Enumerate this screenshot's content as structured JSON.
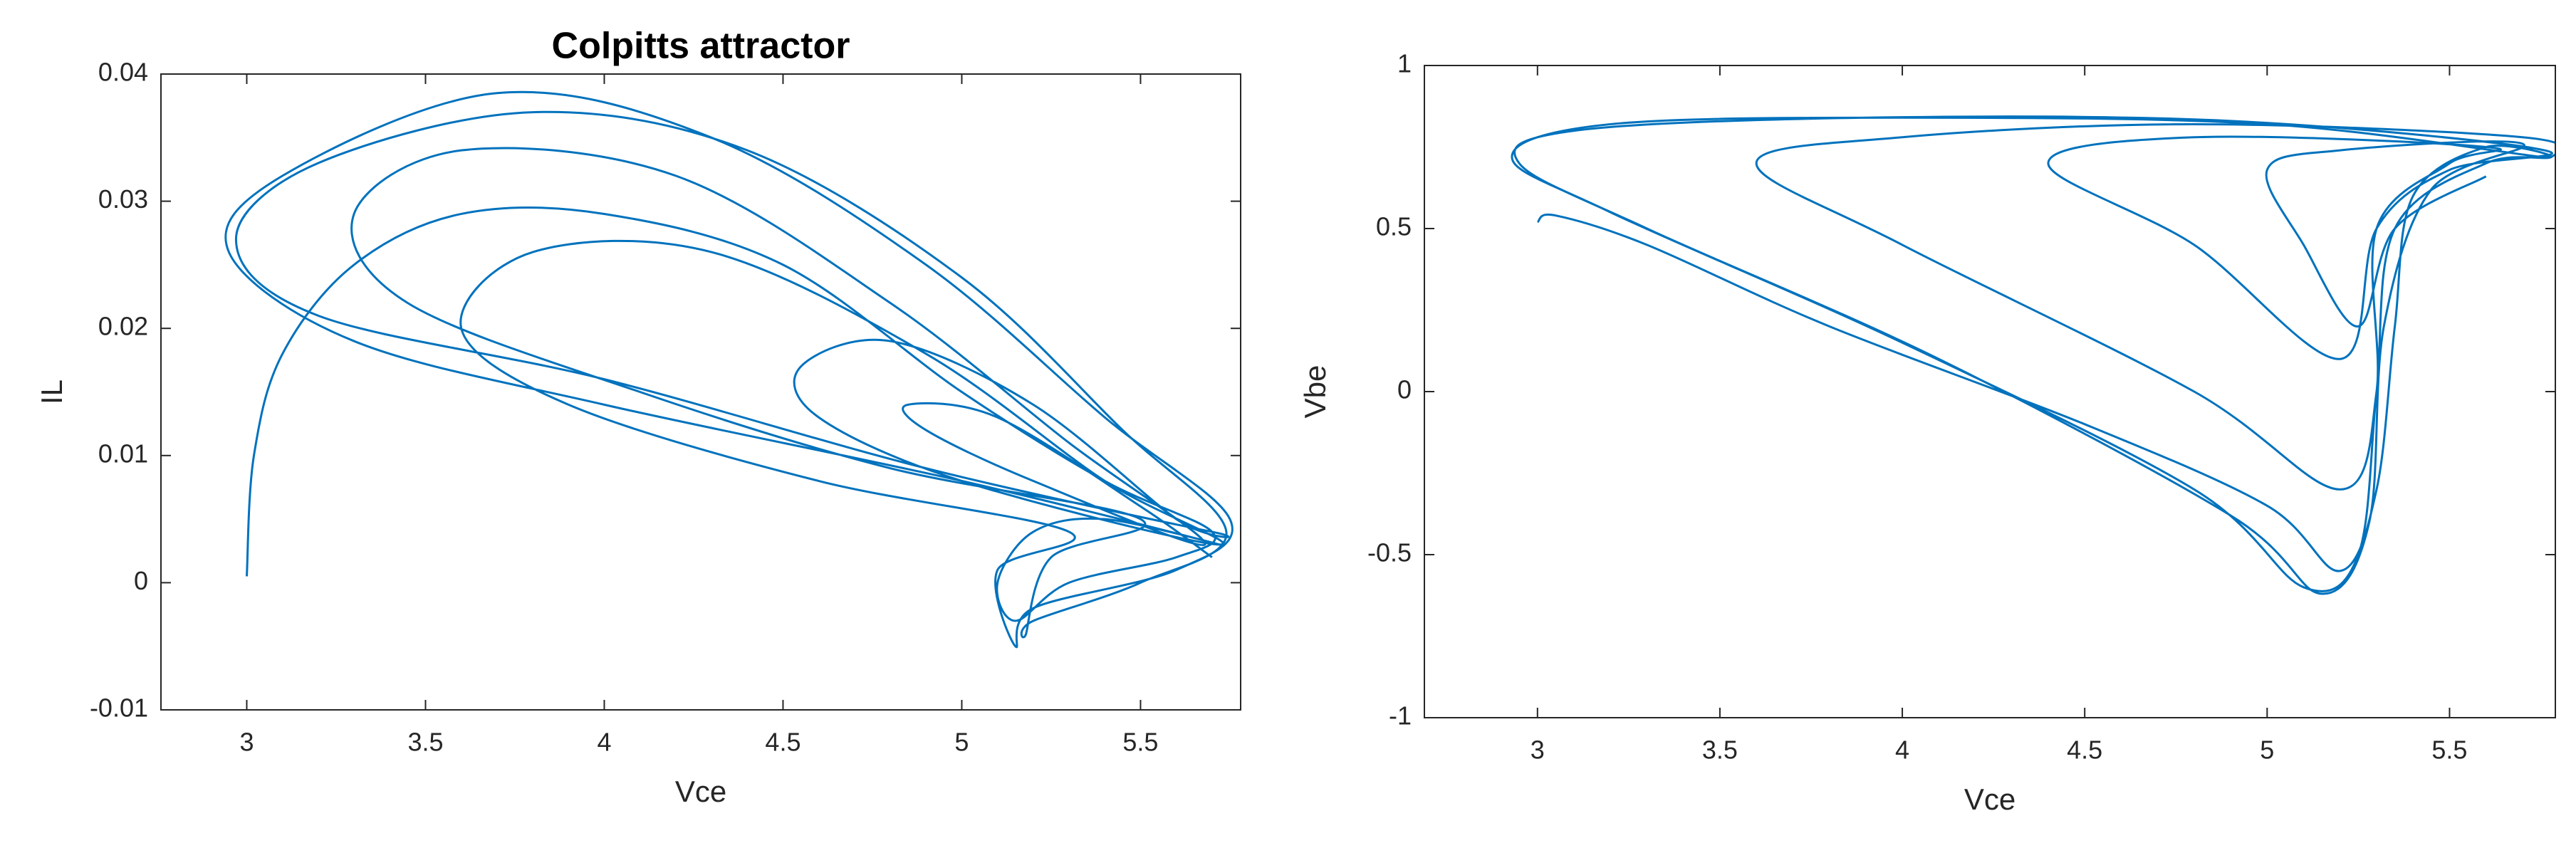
{
  "chart_data": [
    {
      "type": "line",
      "title": "Colpitts attractor",
      "x_label": "Vce",
      "y_label": "IL",
      "xlim": [
        2.76,
        5.78
      ],
      "ylim": [
        -0.01,
        0.04
      ],
      "xticks": [
        3,
        3.5,
        4,
        4.5,
        5,
        5.5
      ],
      "yticks": [
        -0.01,
        0,
        0.01,
        0.02,
        0.03,
        0.04
      ],
      "x": [
        3.0,
        3.02,
        3.1,
        3.3,
        3.6,
        4.0,
        4.5,
        5.0,
        5.4,
        5.7,
        5.6,
        5.3,
        5.15,
        5.1,
        5.2,
        5.4,
        5.72,
        5.0,
        4.0,
        3.3,
        2.95,
        3.1,
        3.7,
        4.3,
        4.9,
        5.4,
        5.75,
        5.6,
        5.2,
        5.15,
        5.1,
        5.3,
        4.6,
        3.9,
        3.6,
        3.8,
        4.3,
        4.9,
        5.4,
        5.72,
        5.0,
        4.6,
        4.55,
        4.8,
        5.2,
        5.6,
        5.7,
        4.9,
        4.0,
        3.2,
        2.97,
        3.2,
        3.8,
        4.4,
        5.0,
        5.45,
        5.74,
        5.5,
        5.2,
        5.18,
        5.25,
        5.5,
        4.8,
        4.1,
        3.45,
        3.3,
        3.6,
        4.2,
        4.8,
        5.3,
        5.68,
        5.2,
        4.9,
        4.85,
        5.1,
        5.5,
        5.7
      ],
      "series": [
        {
          "color": "#0072bd",
          "values": [
            0.0005,
            0.01,
            0.018,
            0.025,
            0.029,
            0.029,
            0.025,
            0.015,
            0.008,
            0.004,
            0.002,
            0.0,
            -0.003,
            0.0,
            0.004,
            0.005,
            0.003,
            0.008,
            0.014,
            0.019,
            0.026,
            0.032,
            0.0385,
            0.035,
            0.025,
            0.013,
            0.005,
            0.001,
            -0.002,
            -0.005,
            0.001,
            0.004,
            0.008,
            0.014,
            0.02,
            0.026,
            0.026,
            0.018,
            0.008,
            0.003,
            0.008,
            0.013,
            0.017,
            0.019,
            0.014,
            0.005,
            0.004,
            0.009,
            0.016,
            0.021,
            0.027,
            0.033,
            0.037,
            0.034,
            0.024,
            0.012,
            0.004,
            0.0,
            -0.003,
            -0.004,
            0.002,
            0.005,
            0.009,
            0.015,
            0.022,
            0.029,
            0.034,
            0.032,
            0.022,
            0.011,
            0.003,
            0.008,
            0.012,
            0.014,
            0.013,
            0.006,
            0.002
          ]
        }
      ]
    },
    {
      "type": "line",
      "x_label": "Vce",
      "y_label": "Vbe",
      "xlim": [
        2.69,
        5.79
      ],
      "ylim": [
        -1,
        1
      ],
      "xticks": [
        3,
        3.5,
        4,
        4.5,
        5,
        5.5
      ],
      "yticks": [
        -1,
        -0.5,
        0,
        0.5,
        1
      ],
      "x": [
        3.0,
        3.05,
        3.3,
        3.8,
        4.5,
        5.0,
        5.2,
        5.3,
        5.35,
        5.4,
        5.6,
        5.75,
        5.0,
        4.0,
        3.2,
        2.93,
        3.2,
        4.0,
        4.8,
        5.1,
        5.25,
        5.3,
        5.35,
        5.6,
        5.78,
        5.7,
        4.8,
        4.0,
        3.6,
        4.0,
        4.8,
        5.2,
        5.3,
        5.3,
        5.5,
        5.6,
        4.8,
        4.4,
        4.8,
        5.2,
        5.3,
        5.5,
        5.76,
        4.9,
        3.9,
        3.1,
        2.95,
        3.3,
        4.1,
        4.9,
        5.15,
        5.28,
        5.32,
        5.45,
        5.7,
        5.2,
        5.0,
        5.1,
        5.25,
        5.35,
        5.6
      ],
      "series": [
        {
          "color": "#0072bd",
          "values": [
            0.52,
            0.54,
            0.45,
            0.2,
            -0.1,
            -0.35,
            -0.55,
            -0.3,
            0.2,
            0.6,
            0.75,
            0.72,
            0.82,
            0.84,
            0.82,
            0.72,
            0.55,
            0.15,
            -0.3,
            -0.6,
            -0.5,
            0.0,
            0.5,
            0.7,
            0.72,
            0.78,
            0.82,
            0.78,
            0.7,
            0.45,
            0.0,
            -0.3,
            0.0,
            0.5,
            0.7,
            0.75,
            0.78,
            0.7,
            0.45,
            0.1,
            0.5,
            0.68,
            0.74,
            0.83,
            0.84,
            0.8,
            0.7,
            0.5,
            0.1,
            -0.38,
            -0.62,
            -0.4,
            0.2,
            0.62,
            0.76,
            0.74,
            0.68,
            0.45,
            0.2,
            0.5,
            0.66
          ]
        }
      ]
    }
  ]
}
